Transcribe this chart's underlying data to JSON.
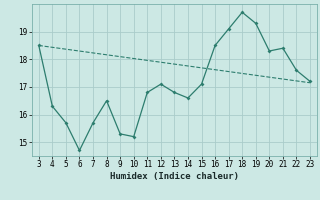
{
  "x": [
    3,
    4,
    5,
    6,
    7,
    8,
    9,
    10,
    11,
    12,
    13,
    14,
    15,
    16,
    17,
    18,
    19,
    20,
    21,
    22,
    23
  ],
  "y": [
    18.5,
    16.3,
    15.7,
    14.7,
    15.7,
    16.5,
    15.3,
    15.2,
    16.8,
    17.1,
    16.8,
    16.6,
    17.1,
    18.5,
    19.1,
    19.7,
    19.3,
    18.3,
    18.4,
    17.6,
    17.2
  ],
  "trend_x": [
    3,
    23
  ],
  "trend_y": [
    18.5,
    17.15
  ],
  "line_color": "#2d7d6e",
  "bg_color": "#cce8e4",
  "grid_color": "#aaccca",
  "xlabel": "Humidex (Indice chaleur)",
  "ylim": [
    14.5,
    20.0
  ],
  "xlim": [
    2.5,
    23.5
  ],
  "yticks": [
    15,
    16,
    17,
    18,
    19
  ],
  "xticks": [
    3,
    4,
    5,
    6,
    7,
    8,
    9,
    10,
    11,
    12,
    13,
    14,
    15,
    16,
    17,
    18,
    19,
    20,
    21,
    22,
    23
  ]
}
